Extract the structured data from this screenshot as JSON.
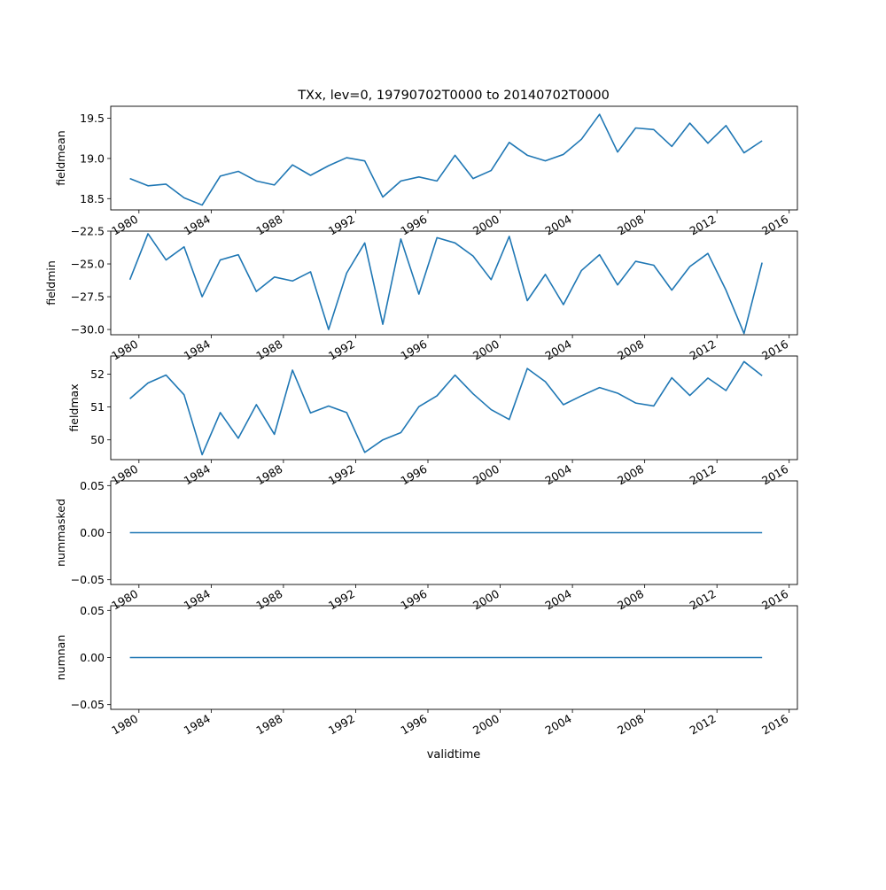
{
  "figure": {
    "title": "TXx, lev=0, 19790702T0000 to 20140702T0000",
    "xlabel": "validtime"
  },
  "chart_data": [
    {
      "type": "line",
      "ylabel": "fieldmean",
      "x_type": "date",
      "xlim": [
        "1978-06-10",
        "2016-06-15"
      ],
      "ylim": [
        18.36,
        19.65
      ],
      "x_ticks": [
        "1980",
        "1984",
        "1988",
        "1992",
        "1996",
        "2000",
        "2004",
        "2008",
        "2012",
        "2016"
      ],
      "y_ticks": [
        18.5,
        19.0,
        19.5
      ],
      "y_tick_labels": [
        "18.5",
        "19.0",
        "19.5"
      ],
      "color": "#1f77b4",
      "x": [
        "1979-07-02",
        "1980-07-02",
        "1981-07-02",
        "1982-07-02",
        "1983-07-02",
        "1984-07-02",
        "1985-07-02",
        "1986-07-02",
        "1987-07-02",
        "1988-07-02",
        "1989-07-02",
        "1990-07-02",
        "1991-07-02",
        "1992-07-02",
        "1993-07-02",
        "1994-07-02",
        "1995-07-02",
        "1996-07-02",
        "1997-07-02",
        "1998-07-02",
        "1999-07-02",
        "2000-07-02",
        "2001-07-02",
        "2002-07-02",
        "2003-07-02",
        "2004-07-02",
        "2005-07-02",
        "2006-07-02",
        "2007-07-02",
        "2008-07-02",
        "2009-07-02",
        "2010-07-02",
        "2011-07-02",
        "2012-07-02",
        "2013-07-02",
        "2014-07-02"
      ],
      "y": [
        18.75,
        18.66,
        18.68,
        18.51,
        18.42,
        18.78,
        18.84,
        18.72,
        18.67,
        18.92,
        18.79,
        18.91,
        19.01,
        18.97,
        18.52,
        18.72,
        18.77,
        18.72,
        19.04,
        18.75,
        18.85,
        19.2,
        19.04,
        18.97,
        19.05,
        19.24,
        19.55,
        19.08,
        19.38,
        19.36,
        19.15,
        19.44,
        19.19,
        19.41,
        19.07,
        19.22
      ]
    },
    {
      "type": "line",
      "ylabel": "fieldmin",
      "x_type": "date",
      "xlim": [
        "1978-06-10",
        "2016-06-15"
      ],
      "ylim": [
        -30.4,
        -22.5
      ],
      "x_ticks": [
        "1980",
        "1984",
        "1988",
        "1992",
        "1996",
        "2000",
        "2004",
        "2008",
        "2012",
        "2016"
      ],
      "y_ticks": [
        -30.0,
        -27.5,
        -25.0,
        -22.5
      ],
      "y_tick_labels": [
        "−30.0",
        "−27.5",
        "−25.0",
        "−22.5"
      ],
      "color": "#1f77b4",
      "x": [
        "1979-07-02",
        "1980-07-02",
        "1981-07-02",
        "1982-07-02",
        "1983-07-02",
        "1984-07-02",
        "1985-07-02",
        "1986-07-02",
        "1987-07-02",
        "1988-07-02",
        "1989-07-02",
        "1990-07-02",
        "1991-07-02",
        "1992-07-02",
        "1993-07-02",
        "1994-07-02",
        "1995-07-02",
        "1996-07-02",
        "1997-07-02",
        "1998-07-02",
        "1999-07-02",
        "2000-07-02",
        "2001-07-02",
        "2002-07-02",
        "2003-07-02",
        "2004-07-02",
        "2005-07-02",
        "2006-07-02",
        "2007-07-02",
        "2008-07-02",
        "2009-07-02",
        "2010-07-02",
        "2011-07-02",
        "2012-07-02",
        "2013-07-02",
        "2014-07-02"
      ],
      "y": [
        -26.2,
        -22.7,
        -24.7,
        -23.7,
        -27.5,
        -24.7,
        -24.3,
        -27.1,
        -26.0,
        -26.3,
        -25.6,
        -30.0,
        -25.7,
        -23.4,
        -29.6,
        -23.1,
        -27.3,
        -23.0,
        -23.4,
        -24.4,
        -26.2,
        -22.9,
        -27.8,
        -25.8,
        -28.1,
        -25.5,
        -24.3,
        -26.6,
        -24.8,
        -25.1,
        -27.0,
        -25.2,
        -24.2,
        -27.0,
        -30.3,
        -24.9
      ]
    },
    {
      "type": "line",
      "ylabel": "fieldmax",
      "x_type": "date",
      "xlim": [
        "1978-06-10",
        "2016-06-15"
      ],
      "ylim": [
        49.4,
        52.55
      ],
      "x_ticks": [
        "1980",
        "1984",
        "1988",
        "1992",
        "1996",
        "2000",
        "2004",
        "2008",
        "2012",
        "2016"
      ],
      "y_ticks": [
        50,
        51,
        52
      ],
      "y_tick_labels": [
        "50",
        "51",
        "52"
      ],
      "color": "#1f77b4",
      "x": [
        "1979-07-02",
        "1980-07-02",
        "1981-07-02",
        "1982-07-02",
        "1983-07-02",
        "1984-07-02",
        "1985-07-02",
        "1986-07-02",
        "1987-07-02",
        "1988-07-02",
        "1989-07-02",
        "1990-07-02",
        "1991-07-02",
        "1992-07-02",
        "1993-07-02",
        "1994-07-02",
        "1995-07-02",
        "1996-07-02",
        "1997-07-02",
        "1998-07-02",
        "1999-07-02",
        "2000-07-02",
        "2001-07-02",
        "2002-07-02",
        "2003-07-02",
        "2004-07-02",
        "2005-07-02",
        "2006-07-02",
        "2007-07-02",
        "2008-07-02",
        "2009-07-02",
        "2010-07-02",
        "2011-07-02",
        "2012-07-02",
        "2013-07-02",
        "2014-07-02"
      ],
      "y": [
        51.25,
        51.73,
        51.97,
        51.37,
        49.55,
        50.83,
        50.05,
        51.07,
        50.17,
        52.12,
        50.82,
        51.03,
        50.83,
        49.62,
        50.0,
        50.22,
        51.01,
        51.34,
        51.97,
        51.4,
        50.92,
        50.62,
        52.17,
        51.77,
        51.07,
        51.34,
        51.59,
        51.42,
        51.12,
        51.03,
        51.89,
        51.35,
        51.88,
        51.5,
        52.38,
        51.95
      ]
    },
    {
      "type": "line",
      "ylabel": "nummasked",
      "x_type": "date",
      "xlim": [
        "1978-06-10",
        "2016-06-15"
      ],
      "ylim": [
        -0.055,
        0.055
      ],
      "x_ticks": [
        "1980",
        "1984",
        "1988",
        "1992",
        "1996",
        "2000",
        "2004",
        "2008",
        "2012",
        "2016"
      ],
      "y_ticks": [
        -0.05,
        0.0,
        0.05
      ],
      "y_tick_labels": [
        "−0.05",
        "0.00",
        "0.05"
      ],
      "color": "#1f77b4",
      "x": [
        "1979-07-02",
        "2014-07-02"
      ],
      "y": [
        0,
        0
      ]
    },
    {
      "type": "line",
      "ylabel": "numnan",
      "x_type": "date",
      "xlim": [
        "1978-06-10",
        "2016-06-15"
      ],
      "ylim": [
        -0.055,
        0.055
      ],
      "x_ticks": [
        "1980",
        "1984",
        "1988",
        "1992",
        "1996",
        "2000",
        "2004",
        "2008",
        "2012",
        "2016"
      ],
      "y_ticks": [
        -0.05,
        0.0,
        0.05
      ],
      "y_tick_labels": [
        "−0.05",
        "0.00",
        "0.05"
      ],
      "color": "#1f77b4",
      "x": [
        "1979-07-02",
        "2014-07-02"
      ],
      "y": [
        0,
        0
      ]
    }
  ]
}
